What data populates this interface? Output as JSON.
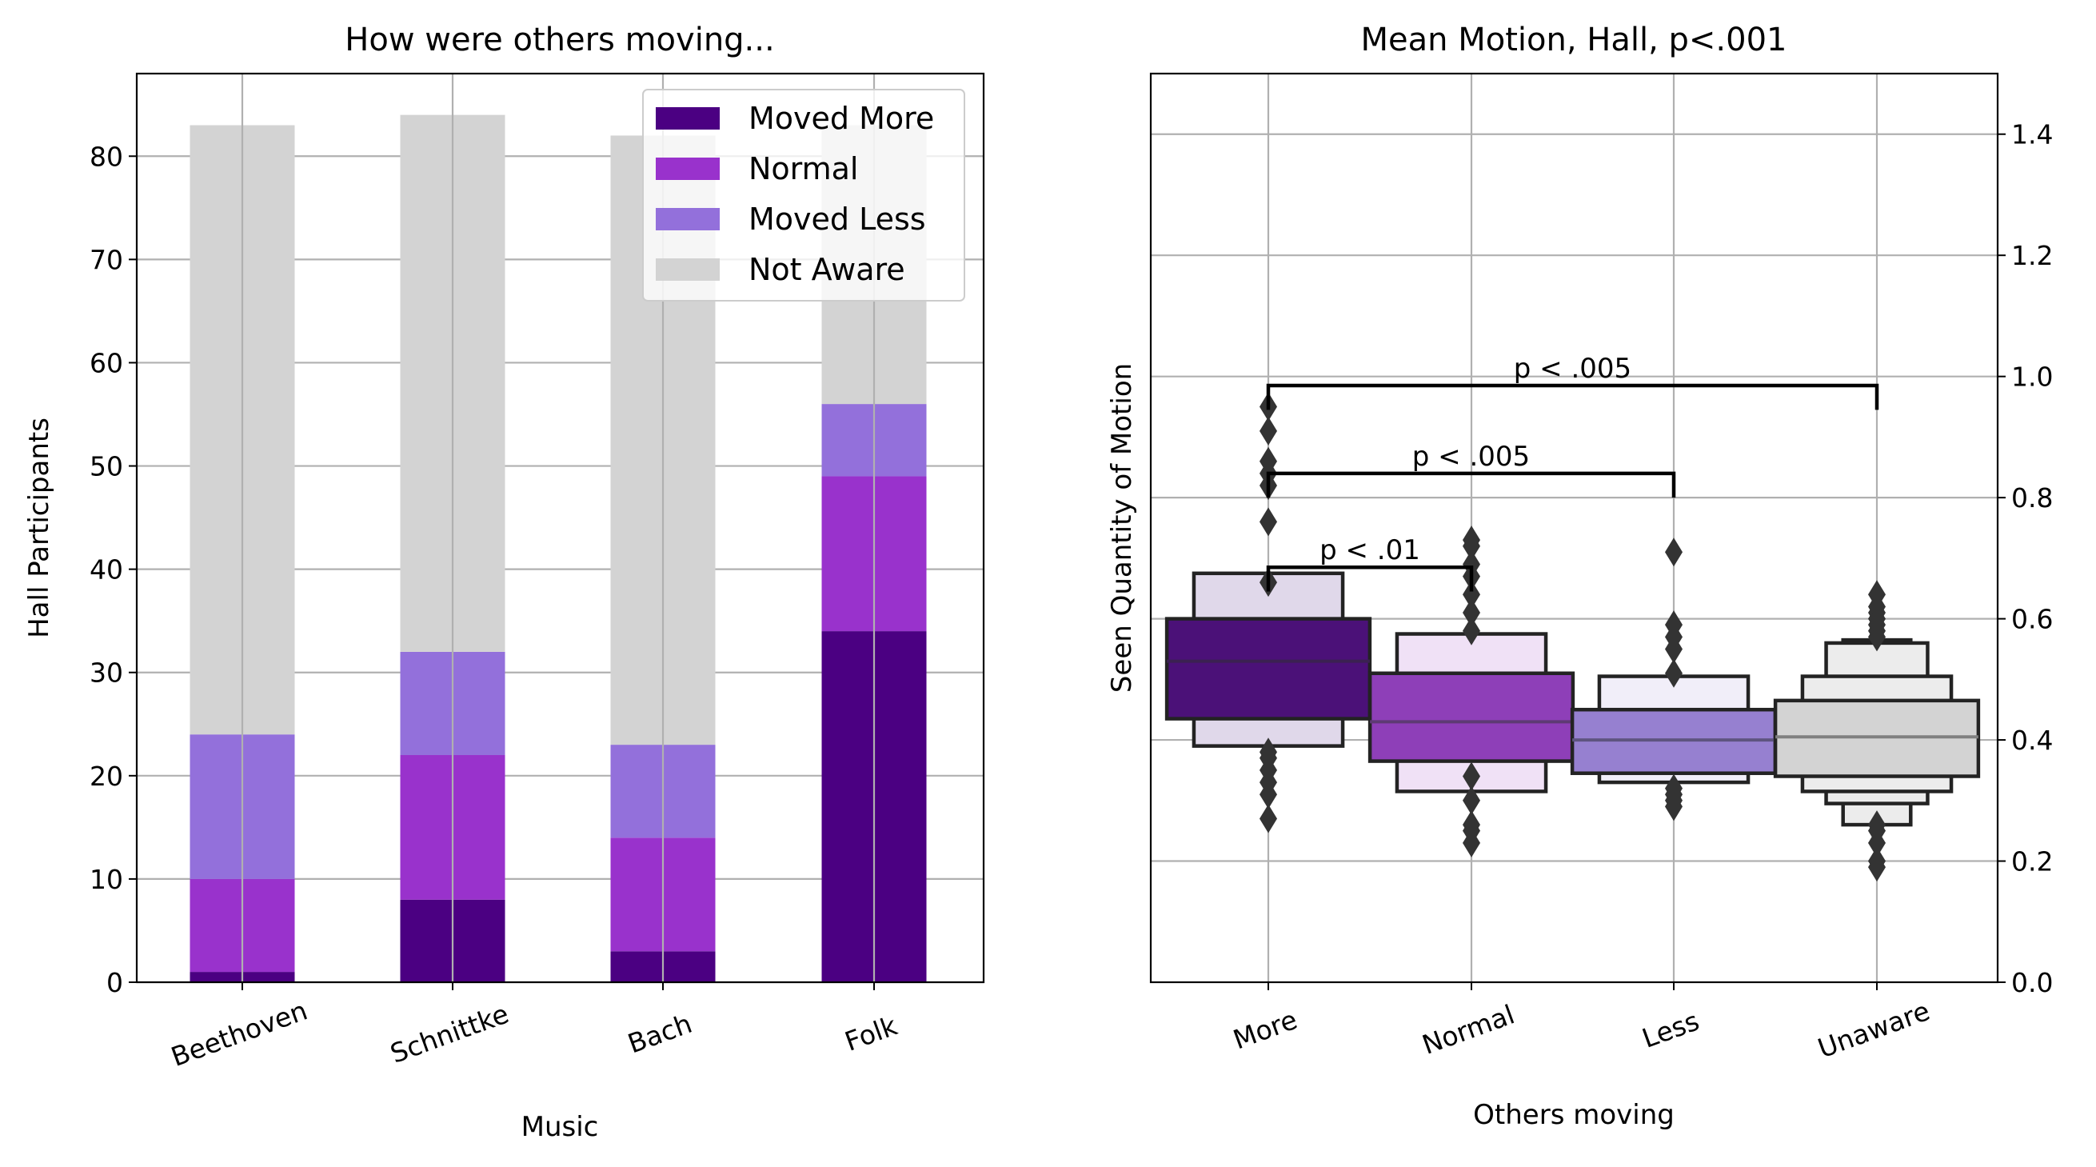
{
  "colors": {
    "moved_more": "#4b0082",
    "normal": "#9932cc",
    "moved_less": "#9370db",
    "not_aware": "#d3d3d3",
    "box_edge": "#232323",
    "grid": "#b0b0b0"
  },
  "chart_data": [
    {
      "type": "bar",
      "stacked": true,
      "title": "How were others moving...",
      "xlabel": "Music",
      "ylabel": "Hall Participants",
      "categories": [
        "Beethoven",
        "Schnittke",
        "Bach",
        "Folk"
      ],
      "series": [
        {
          "name": "Moved More",
          "values": [
            1,
            8,
            3,
            34
          ]
        },
        {
          "name": "Normal",
          "values": [
            9,
            14,
            11,
            15
          ]
        },
        {
          "name": "Moved Less",
          "values": [
            14,
            10,
            9,
            7
          ]
        },
        {
          "name": "Not Aware",
          "values": [
            59,
            52,
            59,
            27
          ]
        }
      ],
      "ylim": [
        0,
        88
      ],
      "yticks": [
        0,
        10,
        20,
        30,
        40,
        50,
        60,
        70,
        80
      ],
      "grid": true,
      "legend": "top-right"
    },
    {
      "type": "boxen",
      "title": "Mean Motion, Hall, p<.001",
      "xlabel": "Others moving",
      "ylabel": "Seen Quantity of Motion",
      "categories": [
        "More",
        "Normal",
        "Less",
        "Unaware"
      ],
      "ylim": [
        0,
        1.5
      ],
      "yticks": [
        0.0,
        0.2,
        0.4,
        0.6,
        0.8,
        1.0,
        1.2,
        1.4
      ],
      "ytick_labels": [
        "0.0",
        "0.2",
        "0.4",
        "0.6",
        "0.8",
        "1.0",
        "1.2",
        "1.4"
      ],
      "yaxis_side": "right",
      "grid": true,
      "groups": [
        {
          "name": "More",
          "median": 0.53,
          "levels": [
            [
              0.435,
              0.6,
              0.3
            ],
            [
              0.39,
              0.675,
              0.22
            ]
          ],
          "outliers": [
            0.27,
            0.31,
            0.33,
            0.35,
            0.37,
            0.38,
            0.66,
            0.76,
            0.82,
            0.84,
            0.86,
            0.91,
            0.95
          ]
        },
        {
          "name": "Normal",
          "median": 0.43,
          "levels": [
            [
              0.365,
              0.51,
              0.3
            ],
            [
              0.315,
              0.575,
              0.22
            ]
          ],
          "outliers": [
            0.23,
            0.25,
            0.26,
            0.3,
            0.34,
            0.58,
            0.61,
            0.64,
            0.67,
            0.69,
            0.72,
            0.73
          ]
        },
        {
          "name": "Less",
          "median": 0.4,
          "levels": [
            [
              0.345,
              0.45,
              0.3
            ],
            [
              0.33,
              0.505,
              0.22
            ]
          ],
          "outliers": [
            0.29,
            0.3,
            0.31,
            0.32,
            0.51,
            0.55,
            0.57,
            0.59,
            0.71
          ]
        },
        {
          "name": "Unaware",
          "median": 0.405,
          "levels": [
            [
              0.34,
              0.465,
              0.3
            ],
            [
              0.315,
              0.505,
              0.22
            ],
            [
              0.295,
              0.56,
              0.15
            ],
            [
              0.26,
              0.565,
              0.1
            ]
          ],
          "outliers": [
            0.19,
            0.2,
            0.23,
            0.25,
            0.26,
            0.57,
            0.58,
            0.59,
            0.6,
            0.61,
            0.62,
            0.64
          ]
        }
      ],
      "annotations": [
        {
          "text": "p < .01",
          "from": "More",
          "to": "Normal",
          "y": 0.685,
          "left_y": 0.645,
          "right_y": 0.645
        },
        {
          "text": "p < .005",
          "from": "More",
          "to": "Less",
          "y": 0.84,
          "left_y": 0.8,
          "right_y": 0.8
        },
        {
          "text": "p < .005",
          "from": "More",
          "to": "Unaware",
          "y": 0.985,
          "left_y": 0.945,
          "right_y": 0.945
        }
      ]
    }
  ]
}
